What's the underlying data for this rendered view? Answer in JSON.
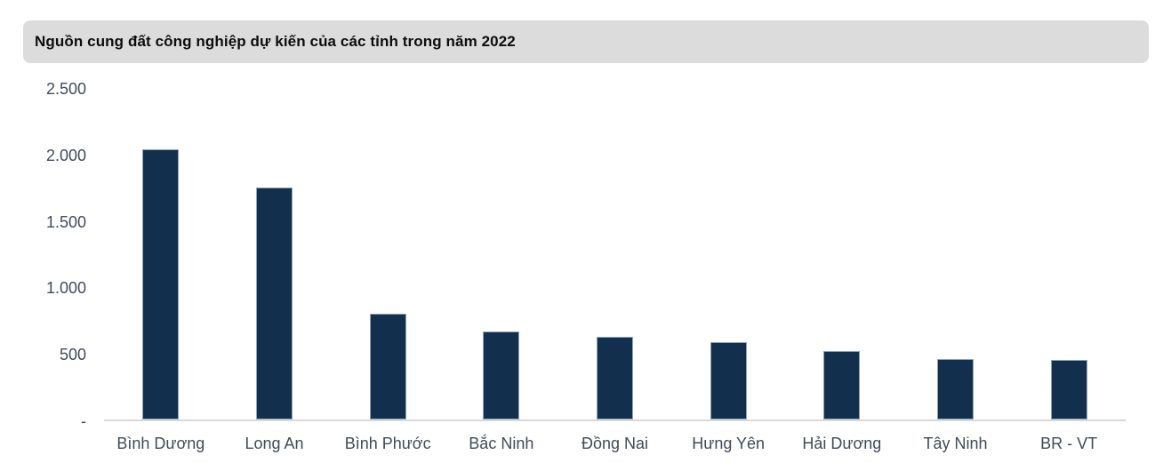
{
  "title_bar": {
    "title": "Nguồn cung đất công nghiệp dự kiến của các tỉnh trong năm 2022",
    "background": "#dcdcdc",
    "text_color": "#0d0d0d"
  },
  "chart_data": {
    "type": "bar",
    "title": "Nguồn cung đất công nghiệp dự kiến của các tỉnh trong năm 2022",
    "categories": [
      "Bình Dương",
      "Long An",
      "Bình Phước",
      "Bắc Ninh",
      "Đồng Nai",
      "Hưng Yên",
      "Hải Dương",
      "Tây Ninh",
      "BR - VT"
    ],
    "values": [
      2030,
      1745,
      795,
      665,
      625,
      580,
      515,
      455,
      445
    ],
    "xlabel": "",
    "ylabel": "",
    "ylim": [
      0,
      2500
    ],
    "y_ticks": [
      {
        "value": 2500,
        "label": "2.500"
      },
      {
        "value": 2000,
        "label": "2.000"
      },
      {
        "value": 1500,
        "label": "1.500"
      },
      {
        "value": 1000,
        "label": "1.000"
      },
      {
        "value": 500,
        "label": "500"
      },
      {
        "value": 0,
        "label": "-"
      }
    ],
    "grid": false,
    "legend": false,
    "bar_color": "#122f4e",
    "bar_border_color": "#8fa5ba",
    "axis_line_color": "#d9d9d9",
    "label_color": "#414b5a"
  }
}
